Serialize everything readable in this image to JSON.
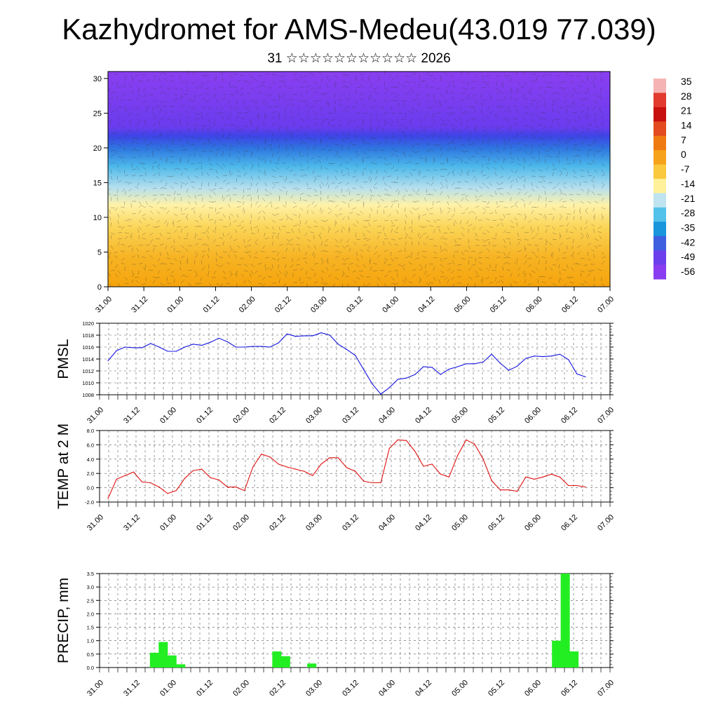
{
  "title": "Kazhydromet for AMS-Medeu(43.019 77.039)",
  "subtitle": "31 ☆☆☆☆☆☆☆☆☆☆☆ 2026",
  "chart_data": [
    {
      "type": "heatmap",
      "name": "cross-section",
      "x_tick_labels": [
        "31.00",
        "31.12",
        "01.00",
        "01.12",
        "02.00",
        "02.12",
        "03.00",
        "03.12",
        "04.00",
        "04.12",
        "05.00",
        "05.12",
        "06.00",
        "06.12",
        "07.00"
      ],
      "y_ticks": [
        0,
        5,
        10,
        15,
        20,
        25,
        30
      ],
      "ylim": [
        0,
        31
      ],
      "colorbar": {
        "labels": [
          "35",
          "28",
          "21",
          "14",
          "7",
          "0",
          "-7",
          "-14",
          "-21",
          "-28",
          "-35",
          "-42",
          "-49",
          "-56"
        ],
        "colors_top_to_bottom": [
          "#f6b3b3",
          "#e23a2e",
          "#c80f0f",
          "#e34a1f",
          "#f07a12",
          "#f6a21a",
          "#fbc93d",
          "#fff19a",
          "#bfe3ef",
          "#53c2ea",
          "#1996dc",
          "#3e5fe0",
          "#6b3fec",
          "#8a3df0"
        ]
      }
    },
    {
      "type": "line",
      "name": "pmsl",
      "ylabel": "PMSL",
      "ylim": [
        1008,
        1020
      ],
      "y_ticks": [
        1008,
        1010,
        1012,
        1014,
        1016,
        1018,
        1020
      ],
      "x_tick_labels": [
        "31.00",
        "31.12",
        "01.00",
        "01.12",
        "02.00",
        "02.12",
        "03.00",
        "03.12",
        "04.00",
        "04.12",
        "05.00",
        "05.12",
        "06.00",
        "06.12",
        "07.00"
      ],
      "color": "#1515e0",
      "values": [
        1013.7,
        1015.4,
        1016.0,
        1015.9,
        1015.9,
        1016.6,
        1016.0,
        1015.3,
        1015.3,
        1016.0,
        1016.5,
        1016.3,
        1016.8,
        1017.5,
        1016.9,
        1016.0,
        1016.0,
        1016.1,
        1016.1,
        1016.0,
        1016.7,
        1018.2,
        1017.8,
        1017.9,
        1017.9,
        1018.4,
        1018.0,
        1016.5,
        1015.6,
        1014.6,
        1012.2,
        1009.8,
        1008.1,
        1009.2,
        1010.6,
        1010.8,
        1011.4,
        1012.7,
        1012.6,
        1011.4,
        1012.3,
        1012.7,
        1013.2,
        1013.2,
        1013.5,
        1014.8,
        1013.3,
        1012.1,
        1012.8,
        1014.1,
        1014.5,
        1014.4,
        1014.5,
        1014.8,
        1013.9,
        1011.5,
        1011.0
      ]
    },
    {
      "type": "line",
      "name": "temp",
      "ylabel": "TEMP at 2 M",
      "ylim": [
        -2,
        8
      ],
      "y_ticks": [
        -2,
        0,
        2,
        4,
        6,
        8
      ],
      "y_tick_labels": [
        "-2.0",
        "0.0",
        "2.0",
        "4.0",
        "6.0",
        "8.0"
      ],
      "x_tick_labels": [
        "31.00",
        "31.12",
        "01.00",
        "01.12",
        "02.00",
        "02.12",
        "03.00",
        "03.12",
        "04.00",
        "04.12",
        "05.00",
        "05.12",
        "06.00",
        "06.12",
        "07.00"
      ],
      "color": "#e01010",
      "values": [
        -1.5,
        1.2,
        1.7,
        2.2,
        0.8,
        0.7,
        0.1,
        -0.8,
        -0.4,
        1.3,
        2.4,
        2.6,
        1.4,
        1.1,
        0.1,
        0.1,
        -0.4,
        2.9,
        4.7,
        4.3,
        3.3,
        2.9,
        2.6,
        2.3,
        1.7,
        3.3,
        4.2,
        4.2,
        2.8,
        2.3,
        0.9,
        0.7,
        0.7,
        5.5,
        6.7,
        6.6,
        5.1,
        3.0,
        3.3,
        1.9,
        1.5,
        4.5,
        6.7,
        6.1,
        4.0,
        1.0,
        -0.3,
        -0.3,
        -0.5,
        1.5,
        1.2,
        1.5,
        1.9,
        1.5,
        0.3,
        0.3,
        0.1
      ]
    },
    {
      "type": "bar",
      "name": "precip",
      "ylabel": "PRECIP, mm",
      "ylim": [
        0,
        3.5
      ],
      "y_ticks": [
        0,
        0.5,
        1,
        1.5,
        2,
        2.5,
        3,
        3.5
      ],
      "y_tick_labels": [
        "0.0",
        "0.5",
        "1.0",
        "1.5",
        "2.0",
        "2.5",
        "3.0",
        "3.5"
      ],
      "x_tick_labels": [
        "31.00",
        "31.12",
        "01.00",
        "01.12",
        "02.00",
        "02.12",
        "03.00",
        "03.12",
        "04.00",
        "04.12",
        "05.00",
        "05.12",
        "06.00",
        "06.12",
        "07.00"
      ],
      "color": "#22ee22",
      "values": [
        0,
        0,
        0,
        0,
        0,
        0.55,
        0.95,
        0.45,
        0.12,
        0,
        0,
        0,
        0,
        0,
        0,
        0,
        0,
        0,
        0,
        0.6,
        0.42,
        0,
        0,
        0.15,
        0,
        0,
        0,
        0,
        0,
        0,
        0,
        0,
        0,
        0,
        0,
        0,
        0,
        0,
        0,
        0,
        0,
        0,
        0,
        0,
        0,
        0,
        0,
        0,
        0,
        0,
        0,
        1.0,
        3.5,
        0.6,
        0,
        0,
        0
      ]
    }
  ]
}
